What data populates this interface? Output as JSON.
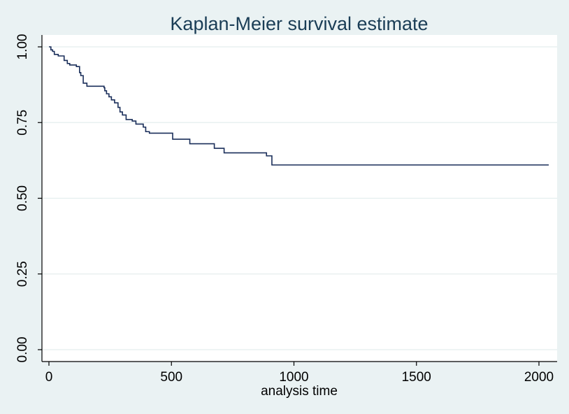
{
  "chart_data": {
    "type": "line",
    "title": "Kaplan-Meier survival estimate",
    "xlabel": "analysis time",
    "ylabel": "",
    "xlim": [
      0,
      2050
    ],
    "ylim": [
      0,
      1
    ],
    "x_ticks": [
      0,
      500,
      1000,
      1500,
      2000
    ],
    "x_tick_labels": [
      "0",
      "500",
      "1000",
      "1500",
      "2000"
    ],
    "y_ticks": [
      0,
      0.25,
      0.5,
      0.75,
      1.0
    ],
    "y_tick_labels": [
      "0.00",
      "0.25",
      "0.50",
      "0.75",
      "1.00"
    ],
    "grid": "horizontal",
    "step": true,
    "series": [
      {
        "color": "#1a2e5a",
        "x": [
          0,
          8,
          15,
          22,
          38,
          62,
          75,
          85,
          112,
          125,
          130,
          140,
          155,
          225,
          228,
          235,
          245,
          255,
          268,
          282,
          290,
          300,
          315,
          340,
          355,
          385,
          395,
          410,
          505,
          575,
          675,
          715,
          888,
          910,
          2040
        ],
        "y": [
          1.0,
          0.99,
          0.985,
          0.975,
          0.97,
          0.955,
          0.945,
          0.94,
          0.935,
          0.915,
          0.905,
          0.88,
          0.87,
          0.865,
          0.855,
          0.845,
          0.835,
          0.825,
          0.815,
          0.8,
          0.785,
          0.775,
          0.76,
          0.755,
          0.745,
          0.735,
          0.72,
          0.715,
          0.695,
          0.68,
          0.665,
          0.65,
          0.64,
          0.61,
          0.61
        ]
      }
    ]
  }
}
